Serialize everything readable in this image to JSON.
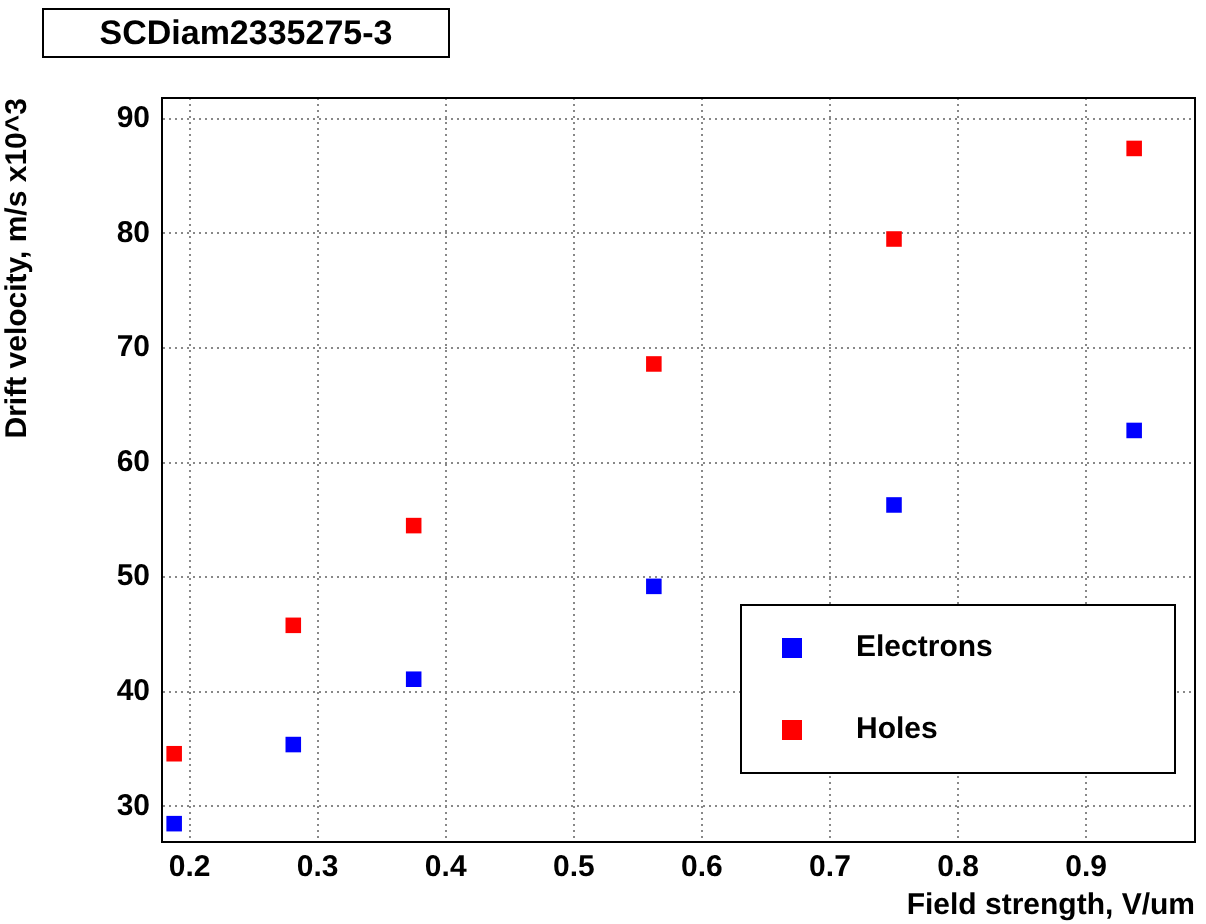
{
  "chart_data": {
    "type": "scatter",
    "title": "SCDiam2335275-3",
    "xlabel": "Field strength, V/um",
    "ylabel": "Drift velocity, m/s x10^3",
    "x": [
      0.188,
      0.281,
      0.375,
      0.5625,
      0.75,
      0.9375
    ],
    "series": [
      {
        "name": "Electrons",
        "color": "#0000ff",
        "values": [
          28.5,
          35.4,
          41.1,
          49.2,
          56.3,
          62.8
        ]
      },
      {
        "name": "Holes",
        "color": "#ff0000",
        "values": [
          34.6,
          45.8,
          54.5,
          68.6,
          79.5,
          87.4
        ]
      }
    ],
    "xlim": [
      0.1785,
      0.985
    ],
    "xticks": [
      {
        "value": 0.2,
        "label": "0.2"
      },
      {
        "value": 0.3,
        "label": "0.3"
      },
      {
        "value": 0.4,
        "label": "0.4"
      },
      {
        "value": 0.5,
        "label": "0.5"
      },
      {
        "value": 0.6,
        "label": "0.6"
      },
      {
        "value": 0.7,
        "label": "0.7"
      },
      {
        "value": 0.8,
        "label": "0.8"
      },
      {
        "value": 0.9,
        "label": "0.9"
      }
    ],
    "ylim": [
      26.9,
      91.8
    ],
    "yticks": [
      30,
      40,
      50,
      60,
      70,
      80,
      90
    ],
    "grid": true,
    "legend": "bottom right",
    "marker": "square"
  }
}
